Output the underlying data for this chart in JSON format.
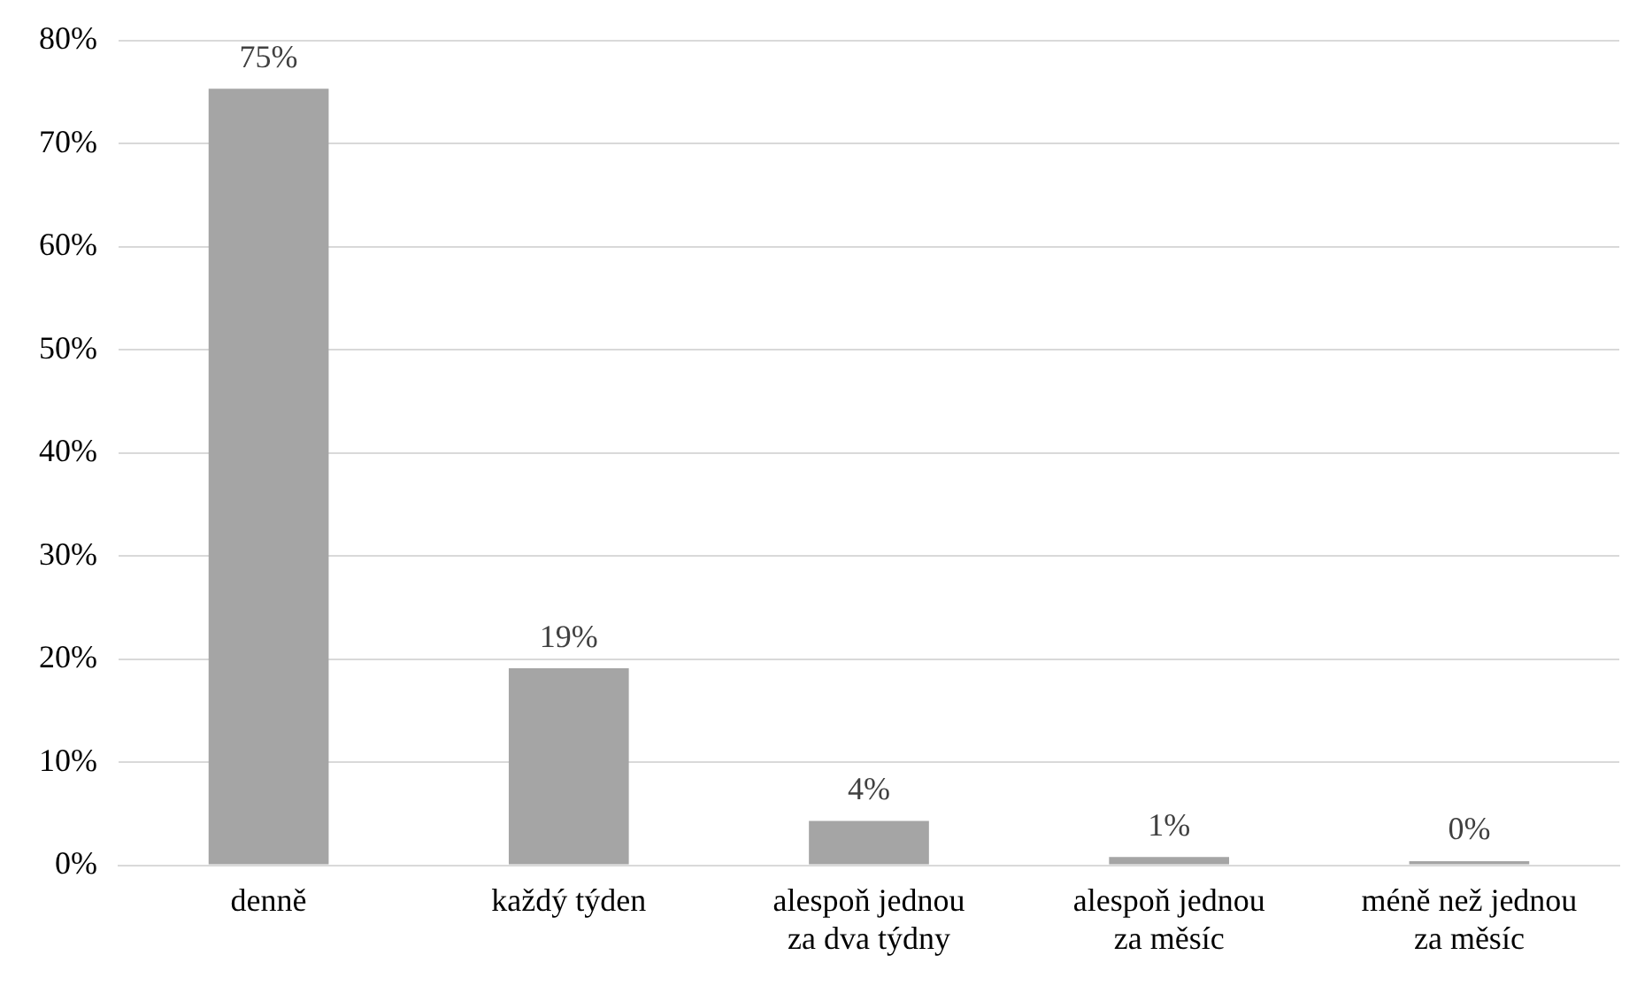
{
  "chart_data": {
    "type": "bar",
    "categories": [
      "denně",
      "každý týden",
      "alespoň jednou za dva týdny",
      "alespoň jednou za měsíc",
      "méně než jednou za měsíc"
    ],
    "values": [
      75.3,
      19.1,
      4.3,
      0.8,
      0.4
    ],
    "value_labels": [
      "75%",
      "19%",
      "4%",
      "1%",
      "0%"
    ],
    "color": "#a5a5a5",
    "ylim": [
      0,
      80
    ],
    "yticks": [
      {
        "value": 0,
        "label": "0%"
      },
      {
        "value": 10,
        "label": "10%"
      },
      {
        "value": 20,
        "label": "20%"
      },
      {
        "value": 30,
        "label": "30%"
      },
      {
        "value": 40,
        "label": "40%"
      },
      {
        "value": 50,
        "label": "50%"
      },
      {
        "value": 60,
        "label": "60%"
      },
      {
        "value": 70,
        "label": "70%"
      },
      {
        "value": 80,
        "label": "80%"
      }
    ],
    "grid": "y",
    "legend": false
  }
}
